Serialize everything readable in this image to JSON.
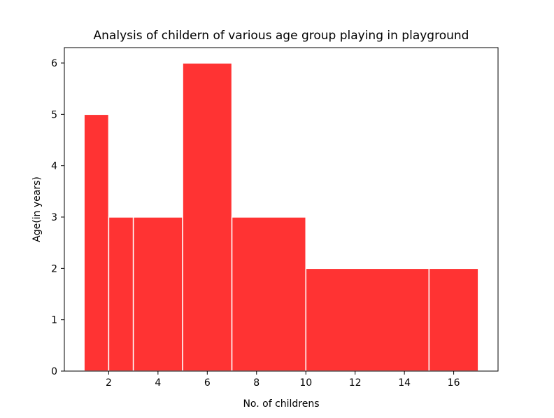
{
  "chart_data": {
    "type": "bar",
    "title": "Analysis of childern of various age group playing in playground",
    "xlabel": "No. of childrens",
    "ylabel": "Age(in years)",
    "bar_color": "#ff3333",
    "edge_color": "#ffffff",
    "xlim": [
      0.2,
      17.8
    ],
    "ylim": [
      0,
      6.3
    ],
    "xticks": [
      2,
      4,
      6,
      8,
      10,
      12,
      14,
      16
    ],
    "yticks": [
      0,
      1,
      2,
      3,
      4,
      5,
      6
    ],
    "bars": [
      {
        "x_start": 1,
        "x_end": 2,
        "value": 5
      },
      {
        "x_start": 2,
        "x_end": 3,
        "value": 3
      },
      {
        "x_start": 3,
        "x_end": 5,
        "value": 3
      },
      {
        "x_start": 5,
        "x_end": 7,
        "value": 6
      },
      {
        "x_start": 7,
        "x_end": 10,
        "value": 3
      },
      {
        "x_start": 10,
        "x_end": 15,
        "value": 2
      },
      {
        "x_start": 15,
        "x_end": 17,
        "value": 2
      }
    ]
  }
}
